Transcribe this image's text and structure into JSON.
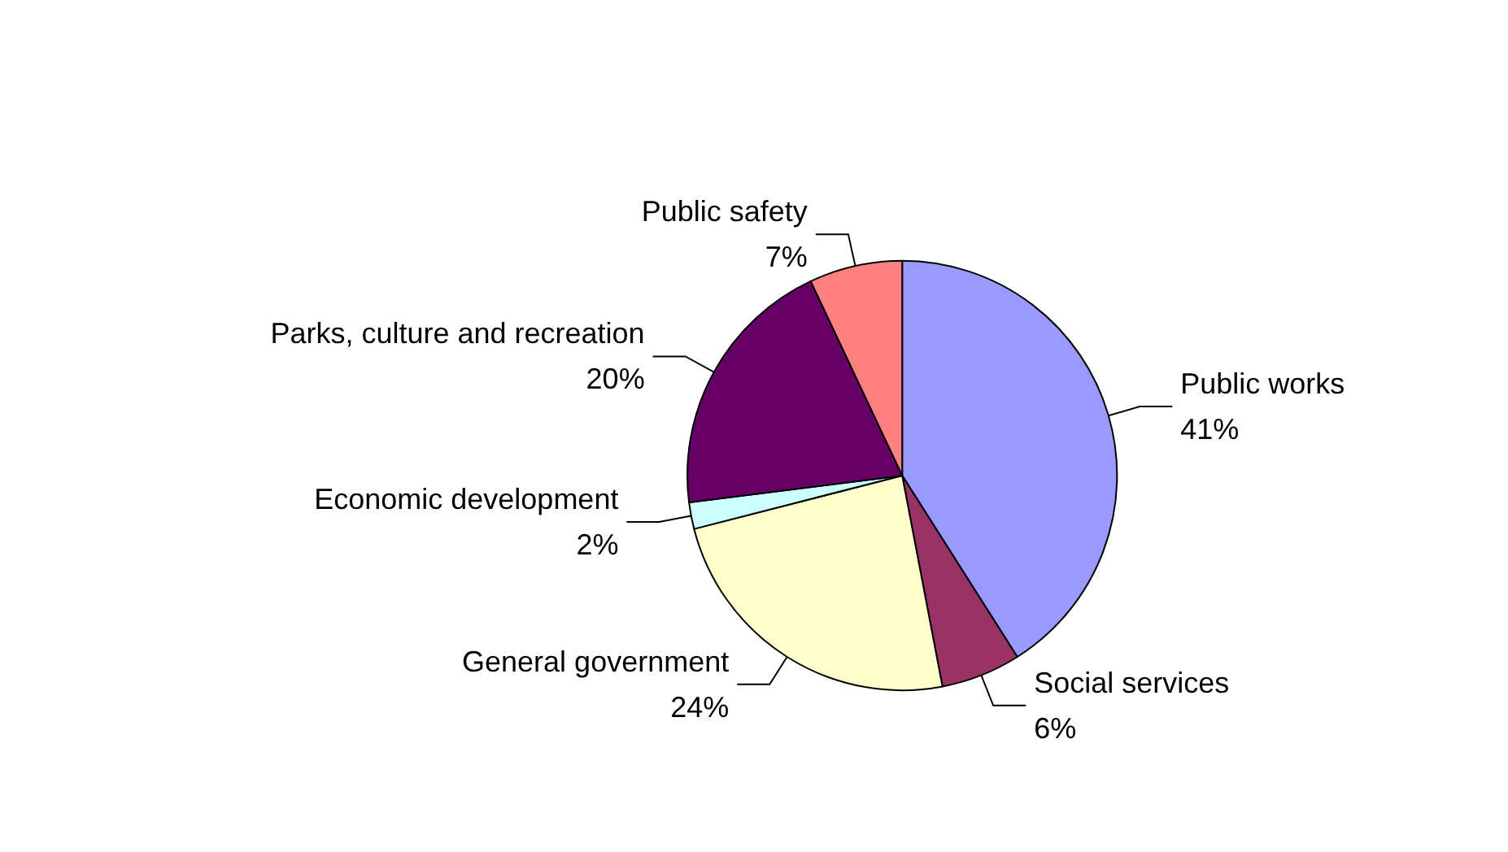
{
  "chart_data": {
    "type": "pie",
    "categories": [
      "Public works",
      "Social services",
      "General government",
      "Economic development",
      "Parks, culture and recreation",
      "Public safety"
    ],
    "values": [
      41,
      6,
      24,
      2,
      20,
      7
    ],
    "value_labels": [
      "41%",
      "6%",
      "24%",
      "2%",
      "20%",
      "7%"
    ],
    "colors": [
      "#9999ff",
      "#993366",
      "#ffffcc",
      "#ccffff",
      "#660066",
      "#ff8080"
    ],
    "legend": false
  }
}
